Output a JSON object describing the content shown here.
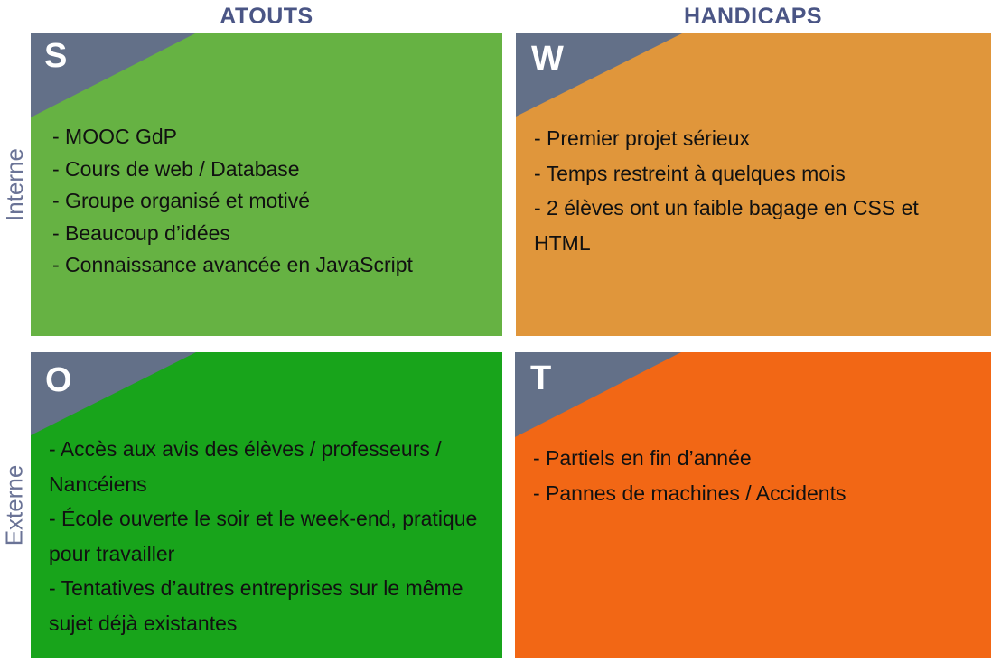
{
  "columns": {
    "left": "ATOUTS",
    "right": "HANDICAPS"
  },
  "rows": {
    "top": "Interne",
    "bottom": "Externe"
  },
  "quadrants": {
    "s": {
      "letter": "S",
      "items": [
        " - MOOC GdP",
        " - Cours de web / Database",
        " - Groupe organisé et motivé",
        " - Beaucoup d’idées",
        " - Connaissance avancée en JavaScript"
      ]
    },
    "w": {
      "letter": "W",
      "items": [
        " - Premier projet sérieux",
        " - Temps restreint à quelques mois",
        " - 2 élèves ont un faible bagage en CSS et HTML"
      ]
    },
    "o": {
      "letter": "O",
      "items": [
        " - Accès aux avis des élèves / professeurs / Nancéiens",
        " - École ouverte le soir et le week-end, pratique pour travailler",
        " - Tentatives d’autres entreprises sur le même sujet déjà existantes"
      ]
    },
    "t": {
      "letter": "T",
      "items": [
        " - Partiels en fin d’année",
        " - Pannes de machines / Accidents"
      ]
    }
  },
  "colors": {
    "header": "#4a5585",
    "row_label": "#6a7396",
    "corner": "#637088",
    "strengths": "#66b243",
    "weaknesses": "#e0963b",
    "opportunities": "#18a41b",
    "threats": "#f26715"
  }
}
